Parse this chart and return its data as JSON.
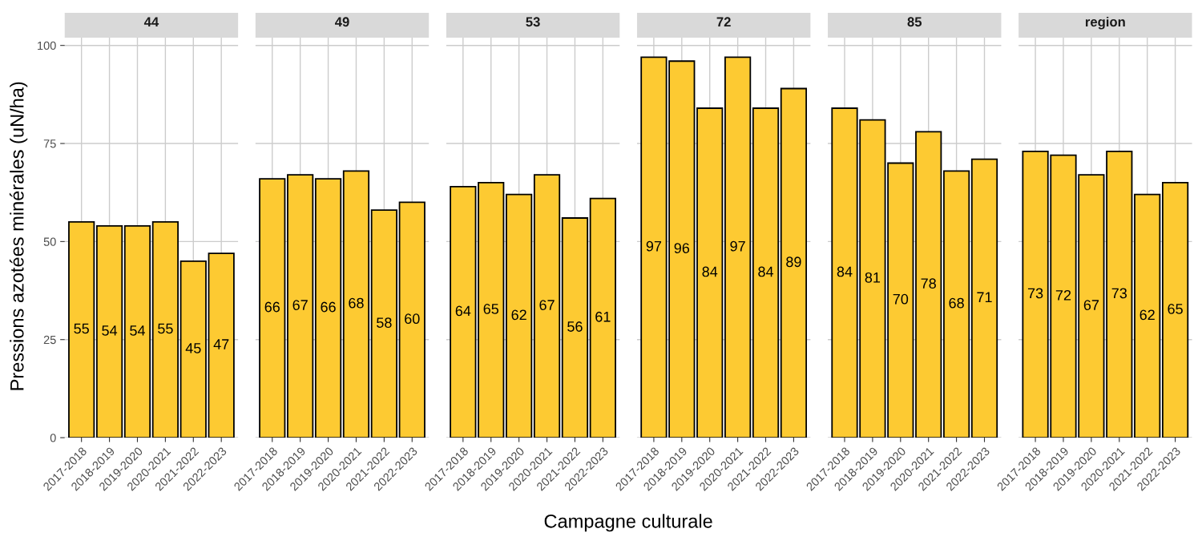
{
  "chart_data": [
    {
      "type": "bar",
      "title": "44",
      "ylabel": "Pressions azotées minérales (uN/ha)",
      "categories": [
        "2017-2018",
        "2018-2019",
        "2019-2020",
        "2020-2021",
        "2021-2022",
        "2022-2023"
      ],
      "values": [
        55,
        54,
        54,
        55,
        45,
        47
      ],
      "data_labels": true,
      "color": "#fdca32",
      "ylim": [
        0,
        102
      ],
      "yticks": [
        0,
        25,
        50,
        75,
        100
      ],
      "grid": true
    },
    {
      "type": "bar",
      "title": "49",
      "categories": [
        "2017-2018",
        "2018-2019",
        "2019-2020",
        "2020-2021",
        "2021-2022",
        "2022-2023"
      ],
      "values": [
        66,
        67,
        66,
        68,
        58,
        60
      ],
      "data_labels": true,
      "color": "#fdca32",
      "ylim": [
        0,
        102
      ],
      "yticks": [
        0,
        25,
        50,
        75,
        100
      ],
      "grid": true,
      "tick_labels": "x"
    },
    {
      "type": "bar",
      "title": "53",
      "xlabel": "Campagne culturale",
      "categories": [
        "2017-2018",
        "2018-2019",
        "2019-2020",
        "2020-2021",
        "2021-2022",
        "2022-2023"
      ],
      "values": [
        64,
        65,
        62,
        67,
        56,
        61
      ],
      "data_labels": true,
      "color": "#fdca32",
      "ylim": [
        0,
        102
      ],
      "yticks": [
        0,
        25,
        50,
        75,
        100
      ],
      "grid": true,
      "tick_labels": "x"
    },
    {
      "type": "bar",
      "title": "72",
      "categories": [
        "2017-2018",
        "2018-2019",
        "2019-2020",
        "2020-2021",
        "2021-2022",
        "2022-2023"
      ],
      "values": [
        97,
        96,
        84,
        97,
        84,
        89
      ],
      "data_labels": true,
      "color": "#fdca32",
      "ylim": [
        0,
        102
      ],
      "yticks": [
        0,
        25,
        50,
        75,
        100
      ],
      "grid": true,
      "tick_labels": "x"
    },
    {
      "type": "bar",
      "title": "85",
      "categories": [
        "2017-2018",
        "2018-2019",
        "2019-2020",
        "2020-2021",
        "2021-2022",
        "2022-2023"
      ],
      "values": [
        84,
        81,
        70,
        78,
        68,
        71
      ],
      "data_labels": true,
      "color": "#fdca32",
      "ylim": [
        0,
        102
      ],
      "yticks": [
        0,
        25,
        50,
        75,
        100
      ],
      "grid": true,
      "tick_labels": "x"
    },
    {
      "type": "bar",
      "title": "region",
      "categories": [
        "2017-2018",
        "2018-2019",
        "2019-2020",
        "2020-2021",
        "2021-2022",
        "2022-2023"
      ],
      "values": [
        73,
        72,
        67,
        73,
        62,
        65
      ],
      "data_labels": true,
      "color": "#fdca32",
      "ylim": [
        0,
        102
      ],
      "yticks": [
        0,
        25,
        50,
        75,
        100
      ],
      "grid": true,
      "tick_labels": "x"
    }
  ]
}
